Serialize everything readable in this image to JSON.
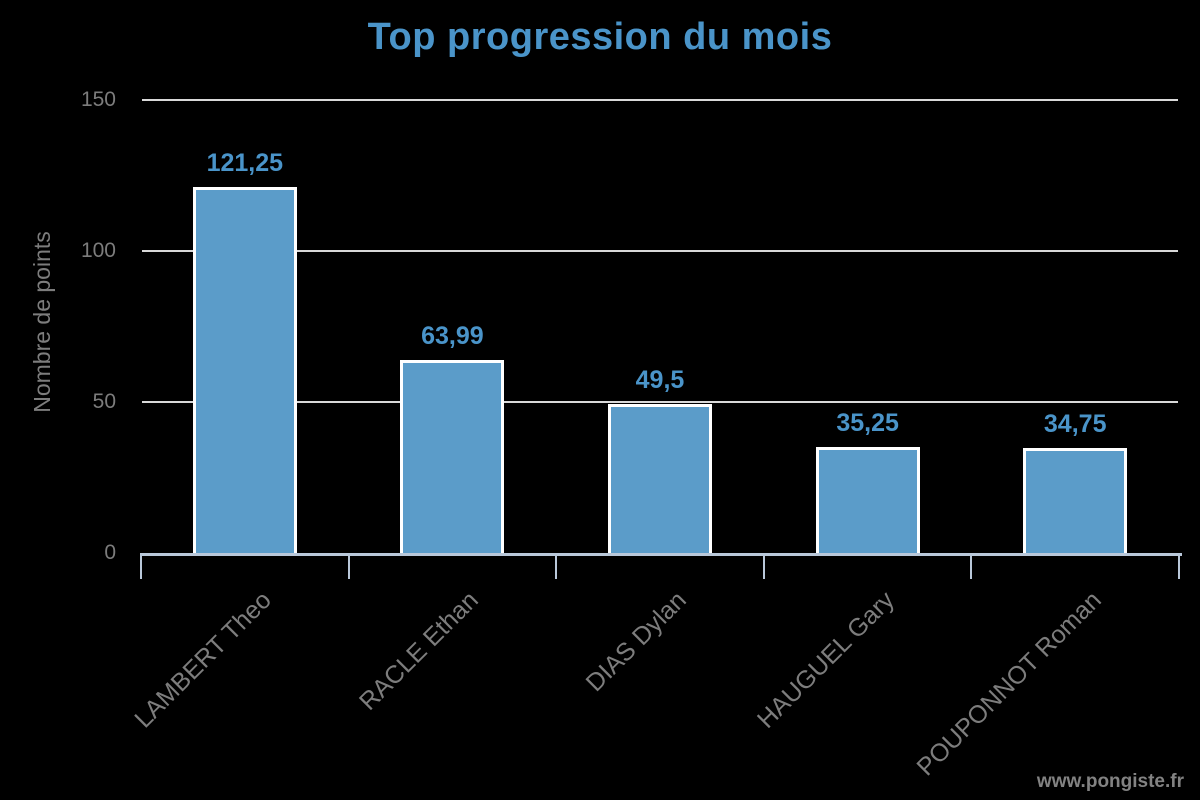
{
  "chart_data": {
    "type": "bar",
    "title": "Top progression du mois",
    "ylabel": "Nombre de points",
    "xlabel": "",
    "categories": [
      "LAMBERT Theo",
      "RACLE Ethan",
      "DIAS Dylan",
      "HAUGUEL Gary",
      "POUPONNOT Roman"
    ],
    "values": [
      121.25,
      63.99,
      49.5,
      35.25,
      34.75
    ],
    "value_labels": [
      "121,25",
      "63,99",
      "49,5",
      "35,25",
      "34,75"
    ],
    "yticks": [
      0,
      50,
      100,
      150
    ],
    "ytick_labels": [
      "0",
      "50",
      "100",
      "150"
    ],
    "ylim": [
      0,
      150
    ],
    "grid": true,
    "legend_position": "none"
  },
  "watermark": "www.pongiste.fr",
  "colors": {
    "background": "#000000",
    "title": "#4A94C9",
    "bar_fill": "#5B9CC9",
    "bar_border": "#FFFFFF",
    "value_label": "#4A94C9",
    "gridline": "#D9D9D9",
    "axis_line": "#B9C8DA",
    "tick_label": "#7C7C7C",
    "category_label": "#7D7D7D",
    "axis_title": "#7D7D7D",
    "watermark": "#828282"
  }
}
